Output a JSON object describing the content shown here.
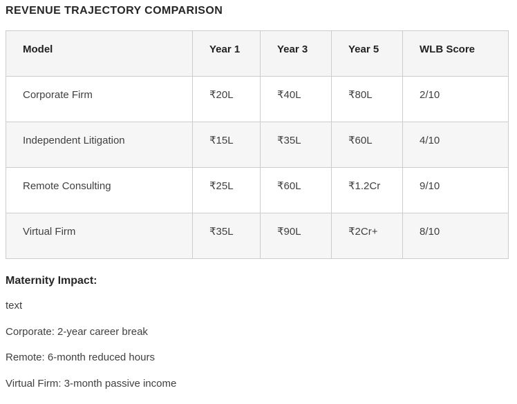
{
  "page": {
    "title": "REVENUE TRAJECTORY COMPARISON"
  },
  "table": {
    "columns": [
      "Model",
      "Year 1",
      "Year 3",
      "Year 5",
      "WLB Score"
    ],
    "rows": [
      [
        "Corporate Firm",
        "₹20L",
        "₹40L",
        "₹80L",
        "2/10"
      ],
      [
        "Independent Litigation",
        "₹15L",
        "₹35L",
        "₹60L",
        "4/10"
      ],
      [
        "Remote Consulting",
        "₹25L",
        "₹60L",
        "₹1.2Cr",
        "9/10"
      ],
      [
        "Virtual Firm",
        "₹35L",
        "₹90L",
        "₹2Cr+",
        "8/10"
      ]
    ]
  },
  "maternity": {
    "heading": "Maternity Impact:",
    "lines": [
      "text",
      "Corporate: 2-year career break",
      "Remote: 6-month reduced hours",
      "Virtual Firm: 3-month passive income"
    ]
  },
  "colors": {
    "border": "#cccccc",
    "header_background": "#f5f5f5",
    "stripe_background": "#f6f6f6",
    "heading_text": "#262626",
    "body_text": "#3f3f3f",
    "page_background": "#ffffff"
  }
}
